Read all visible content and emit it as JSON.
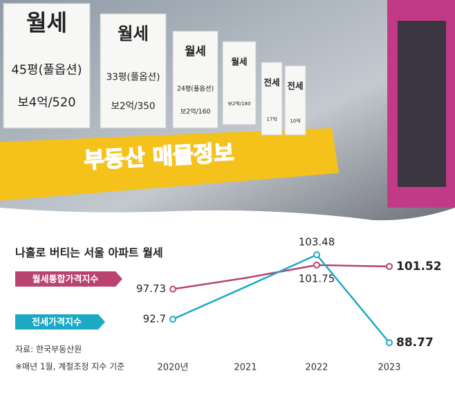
{
  "photo": {
    "signs": [
      [
        "월세",
        "45평(풀옵션)",
        "보4억/520"
      ],
      [
        "월세",
        "33평(풀옵션)",
        "보2억/350"
      ],
      [
        "월세",
        "24평(풀옵션)",
        "보2억/160"
      ],
      [
        "월세",
        "보2억/180"
      ],
      [
        "전세",
        "17억"
      ],
      [
        "전세",
        "10억"
      ]
    ],
    "banner": "부동산 매물정보"
  },
  "chart_data": {
    "type": "line",
    "title": "나홀로 버티는 서울 아파트 월세",
    "categories": [
      "2020년",
      "2021",
      "2022",
      "2023"
    ],
    "series": [
      {
        "name": "월세통합가격지수",
        "color": "#b8436e",
        "values": [
          97.73,
          99.6,
          101.75,
          101.52
        ],
        "value_labels": [
          "97.73",
          null,
          "101.75",
          "101.52"
        ]
      },
      {
        "name": "전세가격지수",
        "color": "#1ba9c4",
        "values": [
          92.7,
          98.1,
          103.48,
          88.77
        ],
        "value_labels": [
          "92.7",
          null,
          "103.48",
          "88.77"
        ]
      }
    ],
    "source": "자료: 한국부동산원",
    "note": "※매년 1월, 계절조정 지수 기준"
  }
}
